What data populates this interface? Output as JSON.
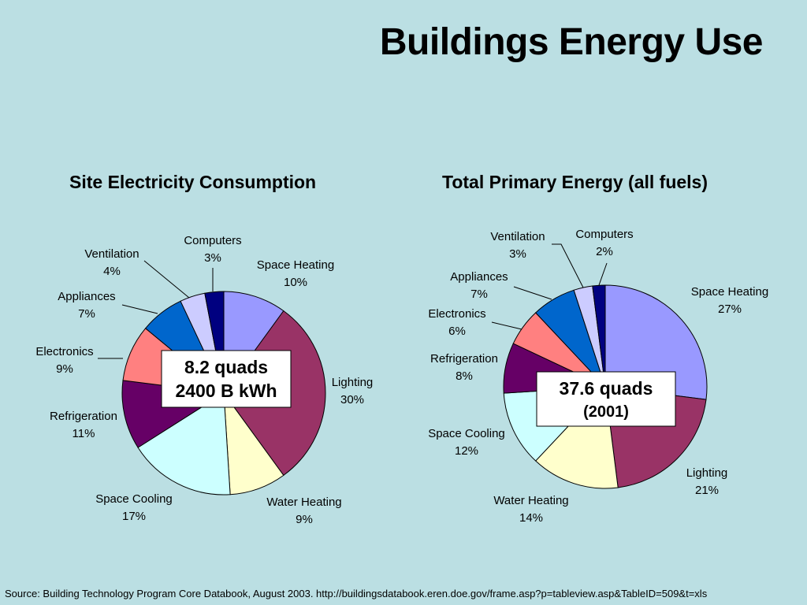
{
  "title": "Buildings Energy Use",
  "source": "Source: Building Technology Program Core Databook, August 2003.  http://buildingsdatabook.eren.doe.gov/frame.asp?p=tableview.asp&TableID=509&t=xls",
  "chart_data": [
    {
      "type": "pie",
      "title": "Site Electricity Consumption",
      "annotation": [
        "8.2 quads",
        "2400 B kWh"
      ],
      "slices": [
        {
          "label": "Space Heating",
          "value": 10,
          "value_text": "10%",
          "color": "#9999ff"
        },
        {
          "label": "Lighting",
          "value": 30,
          "value_text": "30%",
          "color": "#993366"
        },
        {
          "label": "Water Heating",
          "value": 9,
          "value_text": "9%",
          "color": "#ffffcc"
        },
        {
          "label": "Space Cooling",
          "value": 17,
          "value_text": "17%",
          "color": "#ccffff"
        },
        {
          "label": "Refrigeration",
          "value": 11,
          "value_text": "11%",
          "color": "#660066"
        },
        {
          "label": "Electronics",
          "value": 9,
          "value_text": "9%",
          "color": "#ff8080"
        },
        {
          "label": "Appliances",
          "value": 7,
          "value_text": "7%",
          "color": "#0066cc"
        },
        {
          "label": "Ventilation",
          "value": 4,
          "value_text": "4%",
          "color": "#ccccff"
        },
        {
          "label": "Computers",
          "value": 3,
          "value_text": "3%",
          "color": "#000080"
        }
      ]
    },
    {
      "type": "pie",
      "title": "Total Primary Energy (all fuels)",
      "annotation": [
        "37.6 quads",
        "(2001)"
      ],
      "slices": [
        {
          "label": "Space Heating",
          "value": 27,
          "value_text": "27%",
          "color": "#9999ff"
        },
        {
          "label": "Lighting",
          "value": 21,
          "value_text": "21%",
          "color": "#993366"
        },
        {
          "label": "Water Heating",
          "value": 14,
          "value_text": "14%",
          "color": "#ffffcc"
        },
        {
          "label": "Space Cooling",
          "value": 12,
          "value_text": "12%",
          "color": "#ccffff"
        },
        {
          "label": "Refrigeration",
          "value": 8,
          "value_text": "8%",
          "color": "#660066"
        },
        {
          "label": "Electronics",
          "value": 6,
          "value_text": "6%",
          "color": "#ff8080"
        },
        {
          "label": "Appliances",
          "value": 7,
          "value_text": "7%",
          "color": "#0066cc"
        },
        {
          "label": "Ventilation",
          "value": 3,
          "value_text": "3%",
          "color": "#ccccff"
        },
        {
          "label": "Computers",
          "value": 2,
          "value_text": "2%",
          "color": "#000080"
        }
      ]
    }
  ]
}
